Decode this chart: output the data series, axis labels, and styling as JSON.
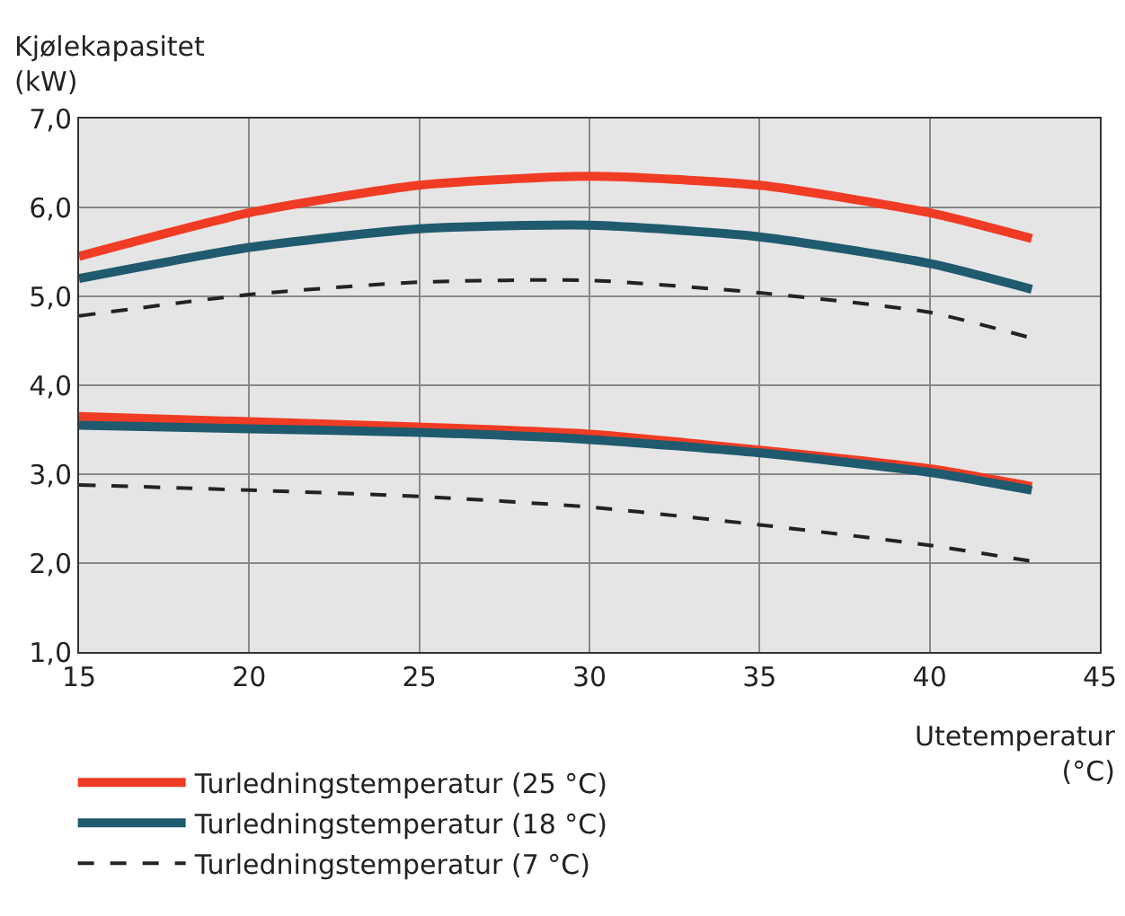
{
  "chart_data": {
    "type": "line",
    "xlabel": "Utetemperatur (°C)",
    "ylabel": "Kjølekapasitet (kW)",
    "xlim": [
      15,
      45
    ],
    "xticks": [
      15,
      20,
      25,
      30,
      35,
      40,
      45
    ],
    "ylim": [
      1,
      7
    ],
    "yticks": [
      {
        "value": 1,
        "label": "1,0"
      },
      {
        "value": 2,
        "label": "2,0"
      },
      {
        "value": 3,
        "label": "3,0"
      },
      {
        "value": 4,
        "label": "4,0"
      },
      {
        "value": 5,
        "label": "5,0"
      },
      {
        "value": 6,
        "label": "6,0"
      },
      {
        "value": 7,
        "label": "7,0"
      }
    ],
    "grid": true,
    "legend": "bottom left",
    "marker": "none",
    "x": [
      15,
      20,
      25,
      30,
      35,
      40,
      43
    ],
    "series": [
      {
        "name": "Turledningstemperatur (25 °C)",
        "color": "#f03c24",
        "line_style": "solid",
        "values": [
          5.45,
          5.94,
          6.25,
          6.35,
          6.25,
          5.94,
          5.65
        ]
      },
      {
        "name": "Turledningstemperatur (18 °C)",
        "color": "#1f5a6e",
        "line_style": "solid",
        "values": [
          5.2,
          5.55,
          5.76,
          5.8,
          5.67,
          5.37,
          5.08
        ]
      },
      {
        "name": "Turledningstemperatur (7 °C)",
        "color": "#222222",
        "line_style": "dashed",
        "values": [
          4.78,
          5.02,
          5.16,
          5.18,
          5.04,
          4.82,
          4.53
        ]
      },
      {
        "color": "#f03c24",
        "line_style": "solid",
        "values": [
          3.65,
          3.59,
          3.53,
          3.45,
          3.27,
          3.06,
          2.86
        ]
      },
      {
        "color": "#1f5a6e",
        "line_style": "solid",
        "values": [
          3.55,
          3.51,
          3.47,
          3.39,
          3.24,
          3.02,
          2.82
        ]
      },
      {
        "color": "#222222",
        "line_style": "dashed",
        "values": [
          2.88,
          2.82,
          2.75,
          2.63,
          2.43,
          2.2,
          2.02
        ]
      }
    ]
  }
}
